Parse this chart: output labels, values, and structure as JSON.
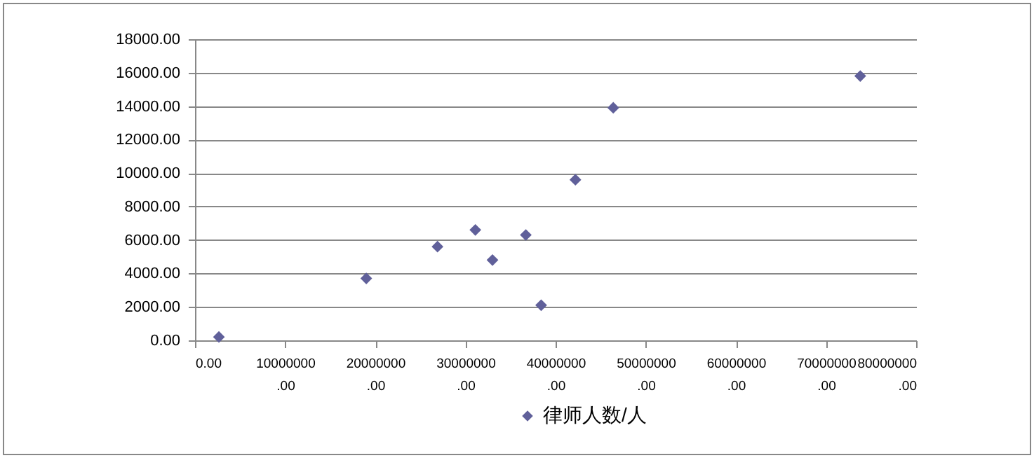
{
  "chart_data": {
    "type": "scatter",
    "x": [
      2650000,
      19000000,
      26900000,
      31100000,
      33000000,
      36700000,
      38400000,
      42200000,
      46400000,
      73800000
    ],
    "series": [
      {
        "name": "律师人数/人",
        "color": "#60609a",
        "values": [
          200,
          3700,
          5600,
          6600,
          4800,
          6300,
          2100,
          9600,
          13900,
          15800
        ]
      }
    ],
    "xlim": [
      0,
      80000000
    ],
    "xticks": [
      {
        "value": 0,
        "label": "0.00"
      },
      {
        "value": 10000000,
        "label": "10000000.00"
      },
      {
        "value": 20000000,
        "label": "20000000.00"
      },
      {
        "value": 30000000,
        "label": "30000000.00"
      },
      {
        "value": 40000000,
        "label": "40000000.00"
      },
      {
        "value": 50000000,
        "label": "50000000.00"
      },
      {
        "value": 60000000,
        "label": "60000000.00"
      },
      {
        "value": 70000000,
        "label": "70000000.00"
      },
      {
        "value": 80000000,
        "label": "80000000.00"
      }
    ],
    "ylim": [
      0,
      18000
    ],
    "yticks": [
      {
        "value": 0,
        "label": "0.00"
      },
      {
        "value": 2000,
        "label": "2000.00"
      },
      {
        "value": 4000,
        "label": "4000.00"
      },
      {
        "value": 6000,
        "label": "6000.00"
      },
      {
        "value": 8000,
        "label": "8000.00"
      },
      {
        "value": 10000,
        "label": "10000.00"
      },
      {
        "value": 12000,
        "label": "12000.00"
      },
      {
        "value": 14000,
        "label": "14000.00"
      },
      {
        "value": 16000,
        "label": "16000.00"
      },
      {
        "value": 18000,
        "label": "18000.00"
      }
    ],
    "grid": "y",
    "legend": "bottom",
    "marker": "diamond"
  }
}
